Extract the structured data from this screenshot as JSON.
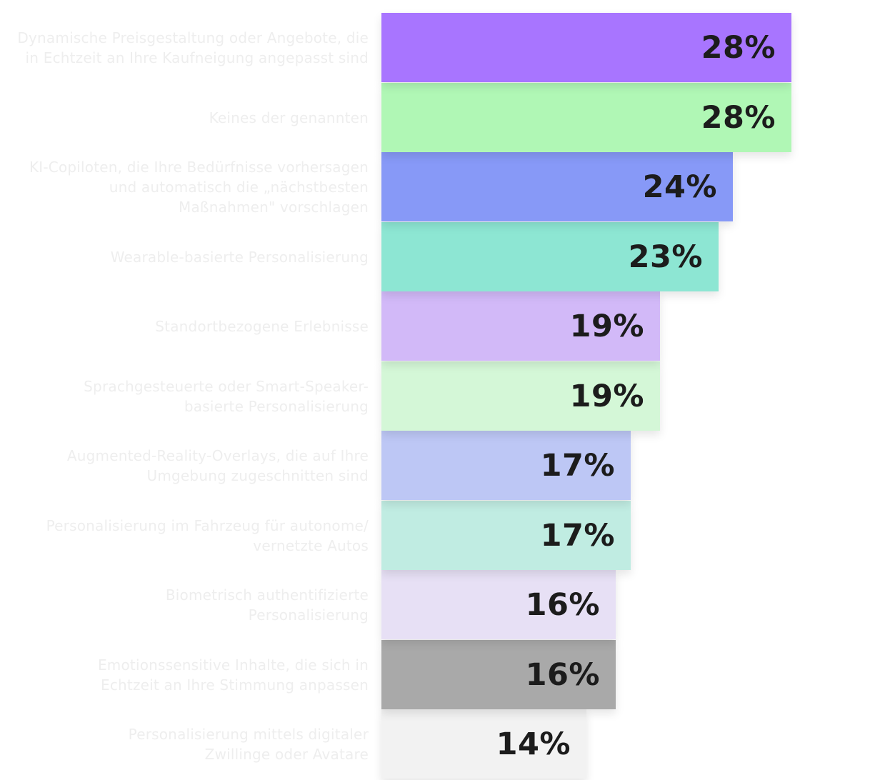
{
  "chart_data": {
    "type": "bar",
    "orientation": "horizontal",
    "categories": [
      "Dynamische Preisgestaltung oder Angebote, die\nin Echtzeit an Ihre Kaufneigung angepasst sind",
      "Keines der genannten",
      "KI-Copiloten, die Ihre Bedürfnisse vorhersagen\nund automatisch die „nächstbesten\nMaßnahmen\" vorschlagen",
      "Wearable-basierte Personalisierung",
      "Standortbezogene Erlebnisse",
      "Sprachgesteuerte oder Smart-Speaker-\nbasierte Personalisierung",
      "Augmented-Reality-Overlays, die auf Ihre\nUmgebung zugeschnitten sind",
      "Personalisierung im Fahrzeug für autonome/\nvernetzte Autos",
      "Biometrisch authentifizierte\nPersonalisierung",
      "Emotionssensitive Inhalte, die sich in\nEchtzeit an Ihre Stimmung anpassen",
      "Personalisierung mittels digitaler\nZwillinge oder Avatare"
    ],
    "values": [
      28,
      28,
      24,
      23,
      19,
      19,
      17,
      17,
      16,
      16,
      14
    ],
    "value_labels": [
      "28%",
      "28%",
      "24%",
      "23%",
      "19%",
      "19%",
      "17%",
      "17%",
      "16%",
      "16%",
      "14%"
    ],
    "colors": [
      "#a875ff",
      "#b0f7b5",
      "#8799f7",
      "#8de6d3",
      "#d2b9f8",
      "#d4f7d7",
      "#bdc7f5",
      "#c0ece2",
      "#e7e0f5",
      "#a9a9a9",
      "#f2f2f2"
    ],
    "xlim": [
      0,
      28
    ],
    "grid": false,
    "legend": "none"
  }
}
